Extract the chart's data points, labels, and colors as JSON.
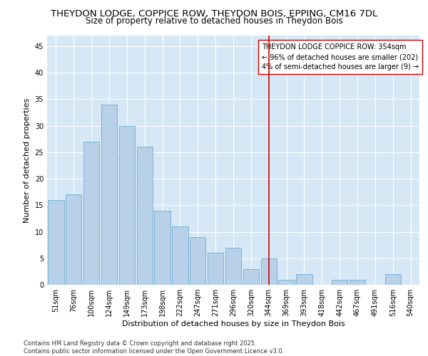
{
  "title_line1": "THEYDON LODGE, COPPICE ROW, THEYDON BOIS, EPPING, CM16 7DL",
  "title_line2": "Size of property relative to detached houses in Theydon Bois",
  "xlabel": "Distribution of detached houses by size in Theydon Bois",
  "ylabel": "Number of detached properties",
  "categories": [
    "51sqm",
    "76sqm",
    "100sqm",
    "124sqm",
    "149sqm",
    "173sqm",
    "198sqm",
    "222sqm",
    "247sqm",
    "271sqm",
    "296sqm",
    "320sqm",
    "344sqm",
    "369sqm",
    "393sqm",
    "418sqm",
    "442sqm",
    "467sqm",
    "491sqm",
    "516sqm",
    "540sqm"
  ],
  "values": [
    16,
    17,
    27,
    34,
    30,
    26,
    14,
    11,
    9,
    6,
    7,
    3,
    5,
    1,
    2,
    0,
    1,
    1,
    0,
    2,
    0
  ],
  "bar_color": "#b8d0e8",
  "bar_edge_color": "#6aaed6",
  "marker_index": 12,
  "marker_color": "#cc0000",
  "annotation_text": "THEYDON LODGE COPPICE ROW: 354sqm\n← 96% of detached houses are smaller (202)\n4% of semi-detached houses are larger (9) →",
  "annotation_box_color": "#ffffff",
  "annotation_box_edge": "#cc0000",
  "ylim": [
    0,
    47
  ],
  "yticks": [
    0,
    5,
    10,
    15,
    20,
    25,
    30,
    35,
    40,
    45
  ],
  "background_color": "#d6e8f5",
  "footer_text": "Contains HM Land Registry data © Crown copyright and database right 2025.\nContains public sector information licensed under the Open Government Licence v3.0.",
  "title_fontsize": 9.5,
  "subtitle_fontsize": 8.5,
  "axis_label_fontsize": 8,
  "tick_fontsize": 7,
  "annotation_fontsize": 7,
  "footer_fontsize": 6
}
